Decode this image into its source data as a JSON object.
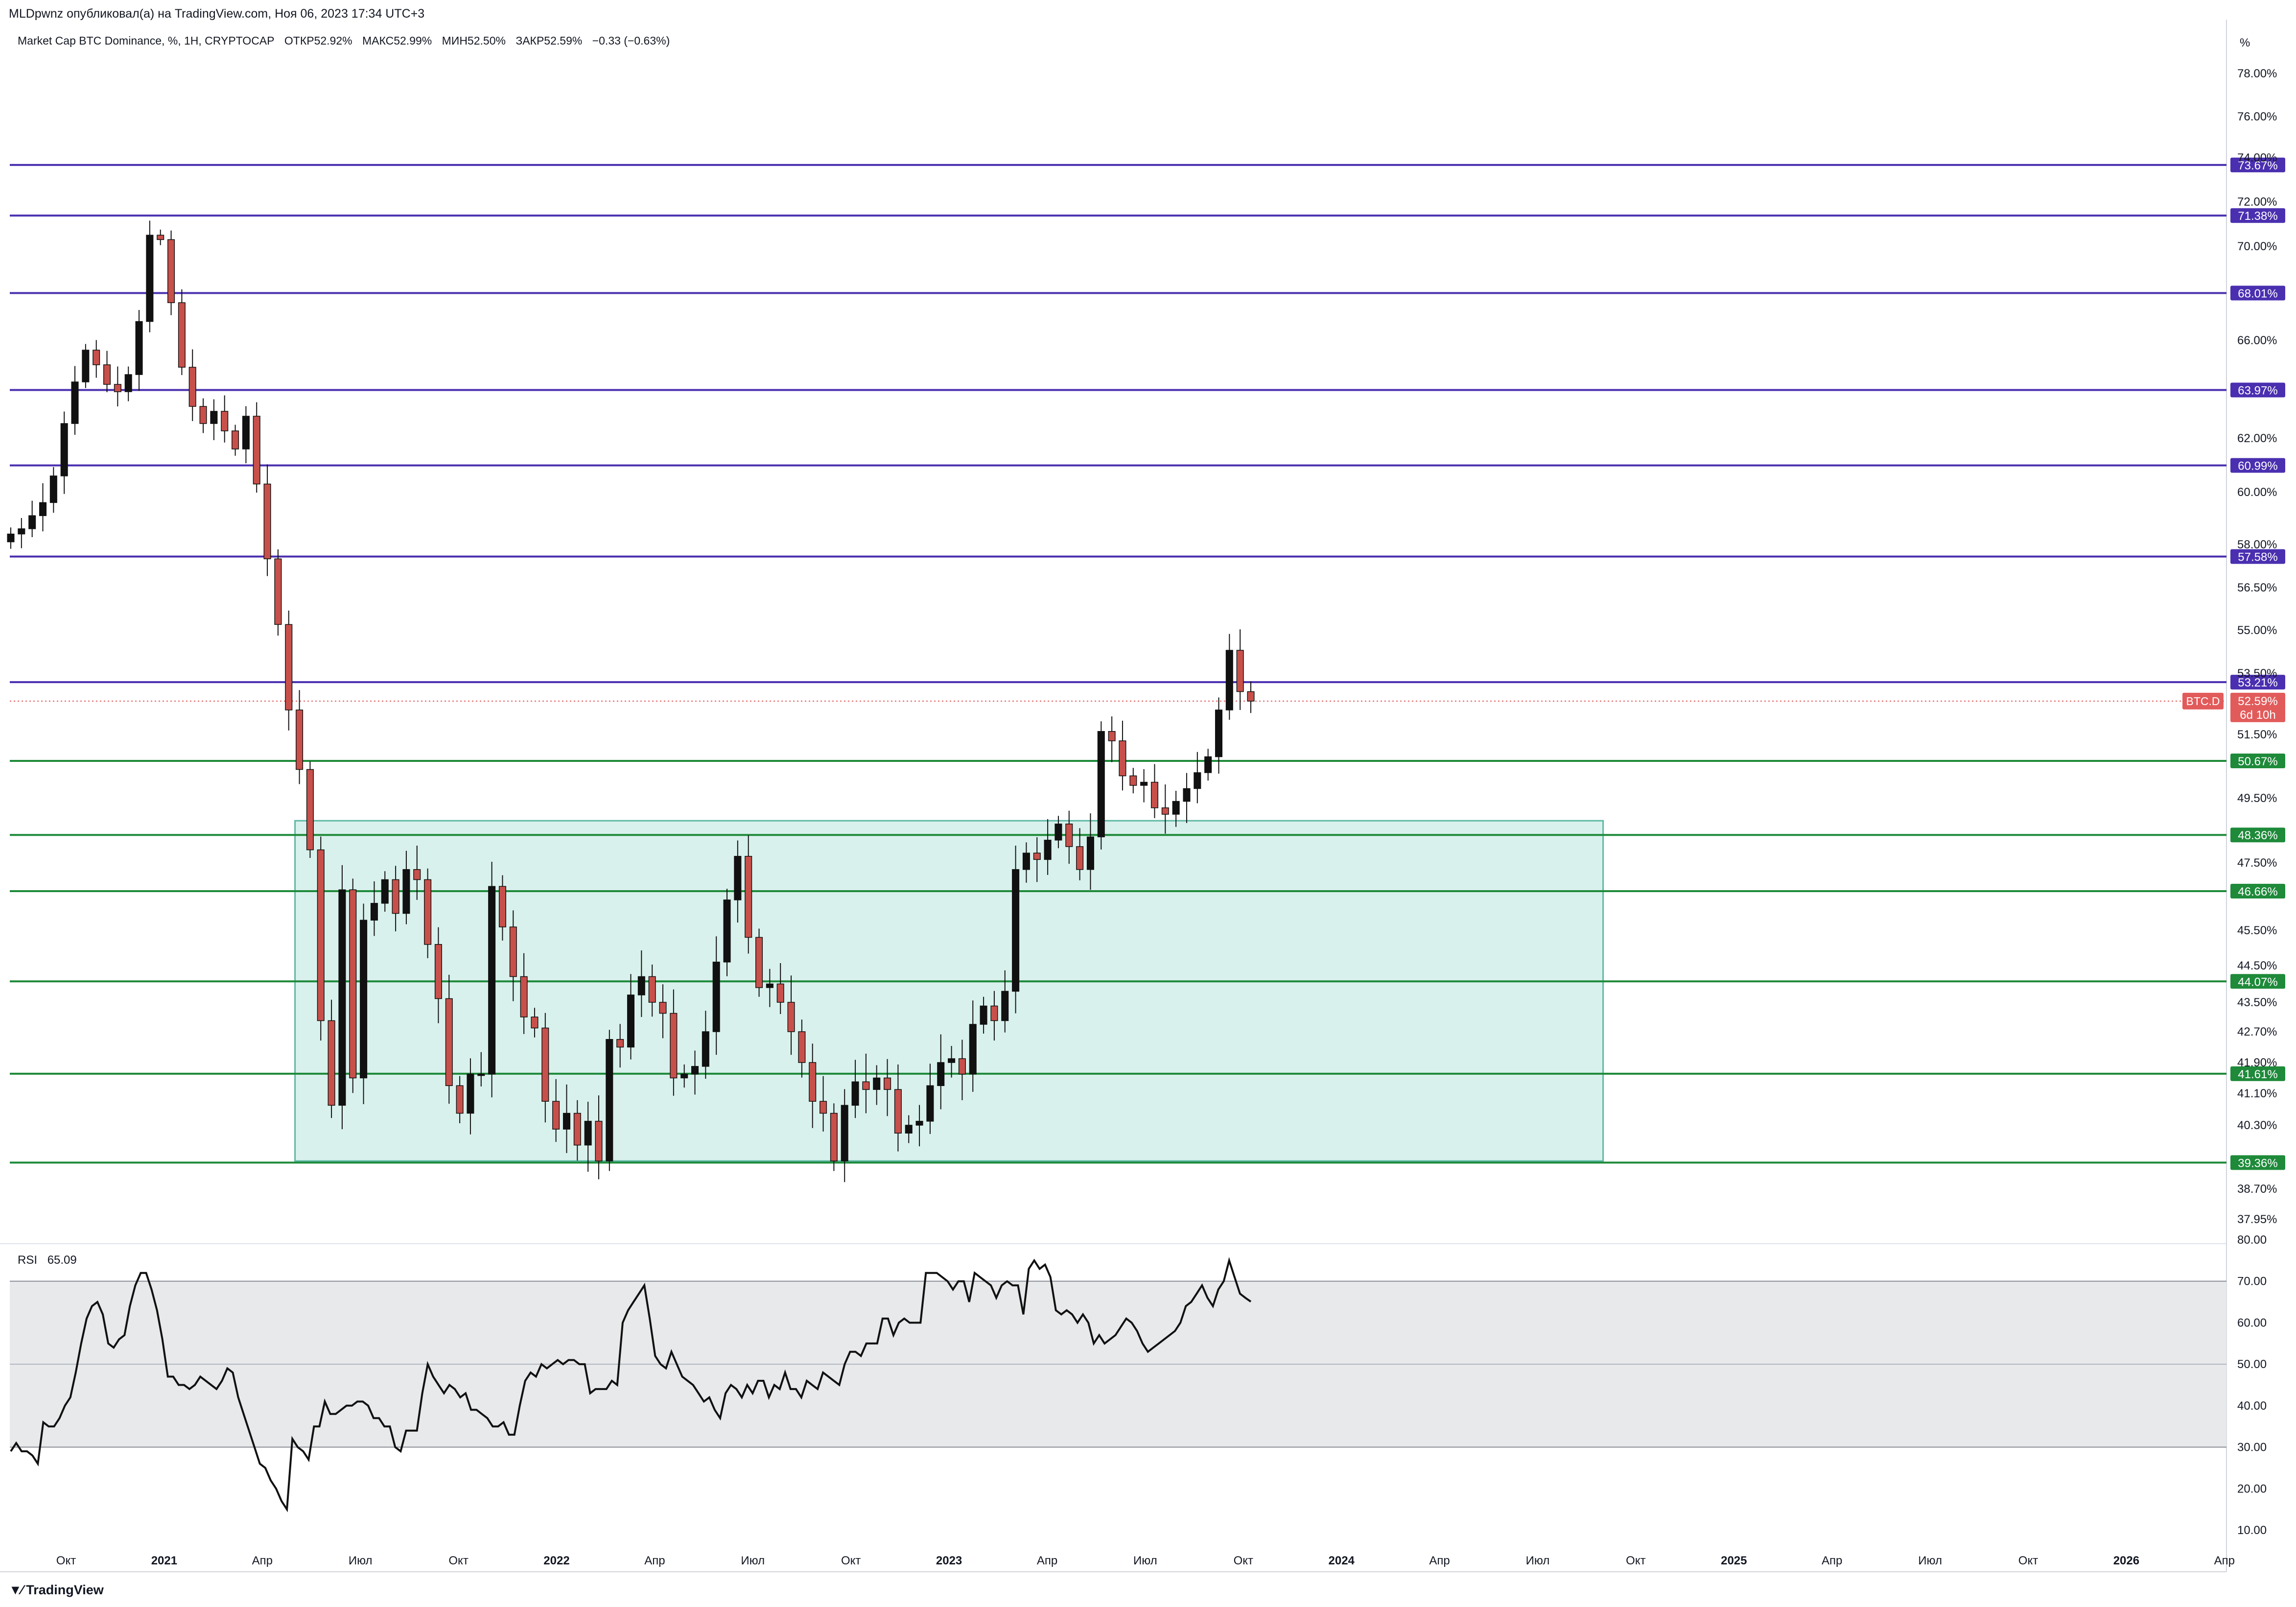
{
  "header": {
    "publisher_line": "MLDpwnz опубликовал(а) на TradingView.com, Ноя 06, 2023 17:34 UTC+3",
    "symbol_line": [
      "Market Cap BTC Dominance, %, 1H, CRYPTOCAP",
      "ОТКР52.92%",
      "МАКС52.99%",
      "МИН52.50%",
      "ЗАКР52.59%",
      "−0.33 (−0.63%)"
    ],
    "rsi_line": [
      "RSI",
      "65.09"
    ],
    "percent_label": "%",
    "logo_text": "TradingView",
    "logo_icon": "tradingview-logo-icon"
  },
  "colors": {
    "up_candle": "#111111",
    "down_candle": "#c8504b",
    "resistance_line": "#4a2fb0",
    "support_line": "#1e8a3a",
    "range_fill": "#d9f1ec",
    "range_border": "#5fb8a6",
    "rsi_band": "#e8e9eb",
    "current_price_tag": "#e25b5b"
  },
  "chart_data": [
    {
      "type": "candlestick",
      "title": "Market Cap BTC Dominance, %, 1H, CRYPTOCAP",
      "ylabel": "%",
      "ylim": [
        37.5,
        80.0
      ],
      "y_tick_labels": [
        "78.00%",
        "76.00%",
        "74.00%",
        "72.00%",
        "70.00%",
        "66.00%",
        "62.00%",
        "60.00%",
        "58.00%",
        "56.50%",
        "55.00%",
        "53.50%",
        "51.50%",
        "49.50%",
        "47.50%",
        "45.50%",
        "44.50%",
        "43.50%",
        "42.70%",
        "41.90%",
        "41.10%",
        "40.30%",
        "38.70%",
        "37.95%"
      ],
      "x_tick_labels": [
        "Окт",
        "2021",
        "Апр",
        "Июл",
        "Окт",
        "2022",
        "Апр",
        "Июл",
        "Окт",
        "2023",
        "Апр",
        "Июл",
        "Окт",
        "2024",
        "Апр",
        "Июл",
        "Окт",
        "2025",
        "Апр",
        "Июл",
        "Окт",
        "2026",
        "Апр"
      ],
      "x_tick_bold": [
        "2021",
        "2022",
        "2023",
        "2024",
        "2025",
        "2026"
      ],
      "resistance_levels": [
        "73.67%",
        "71.38%",
        "68.01%",
        "63.97%",
        "60.99%",
        "57.58%",
        "53.21%"
      ],
      "support_levels": [
        "50.67%",
        "48.36%",
        "46.66%",
        "44.07%",
        "41.61%",
        "39.36%"
      ],
      "range_box": {
        "top": 48.8,
        "bottom": 39.4,
        "start": "2021-05",
        "end": "2024-09"
      },
      "current_price": {
        "symbol": "BTC.D",
        "value": "52.59%",
        "countdown": "6d 10h"
      },
      "close_path": [
        58.4,
        58.6,
        59.1,
        59.6,
        60.6,
        62.6,
        64.3,
        65.6,
        65.0,
        64.2,
        63.9,
        64.6,
        66.8,
        70.5,
        70.3,
        67.6,
        64.9,
        63.3,
        62.6,
        63.1,
        62.3,
        61.6,
        62.9,
        60.3,
        57.5,
        55.2,
        52.3,
        50.4,
        47.9,
        43.0,
        40.8,
        46.7,
        41.5,
        45.8,
        46.3,
        47.0,
        46.0,
        47.3,
        47.0,
        45.1,
        43.6,
        41.3,
        40.6,
        41.6,
        41.6,
        46.8,
        45.6,
        44.2,
        43.1,
        42.8,
        40.9,
        40.2,
        40.6,
        39.8,
        40.4,
        39.4,
        42.5,
        42.3,
        43.7,
        44.2,
        43.5,
        43.2,
        41.5,
        41.6,
        41.8,
        42.7,
        44.6,
        46.4,
        47.7,
        45.3,
        43.9,
        44.0,
        43.5,
        42.7,
        41.9,
        40.9,
        40.6,
        39.4,
        40.8,
        41.4,
        41.2,
        41.5,
        41.2,
        40.1,
        40.3,
        40.4,
        41.3,
        41.9,
        42.0,
        41.6,
        42.9,
        43.4,
        43.0,
        43.8,
        47.3,
        47.8,
        47.6,
        48.2,
        48.7,
        48.0,
        47.3,
        48.3,
        51.6,
        51.3,
        50.2,
        49.9,
        50.0,
        49.2,
        49.0,
        49.4,
        49.8,
        50.3,
        50.8,
        52.3,
        54.3,
        52.9,
        52.59
      ]
    },
    {
      "type": "line",
      "title": "RSI",
      "ylim": [
        10,
        82
      ],
      "y_tick_labels": [
        "80.00",
        "70.00",
        "60.00",
        "50.00",
        "40.00",
        "30.00",
        "20.00",
        "10.00"
      ],
      "band": [
        30,
        70
      ],
      "midline": 50,
      "values": [
        29,
        31,
        29,
        29,
        28,
        26,
        36,
        35,
        35,
        37,
        40,
        42,
        48,
        55,
        61,
        64,
        65,
        62,
        55,
        54,
        56,
        57,
        64,
        69,
        72,
        72,
        68,
        63,
        56,
        47,
        47,
        45,
        45,
        44,
        45,
        47,
        46,
        45,
        44,
        46,
        49,
        48,
        42,
        38,
        34,
        30,
        26,
        25,
        22,
        20,
        17,
        15,
        32,
        30,
        29,
        27,
        35,
        35,
        41,
        38,
        38,
        39,
        40,
        40,
        41,
        41,
        40,
        37,
        37,
        35,
        35,
        30,
        29,
        34,
        34,
        34,
        43,
        50,
        47,
        45,
        43,
        45,
        44,
        42,
        43,
        39,
        39,
        38,
        37,
        35,
        35,
        36,
        33,
        33,
        40,
        46,
        48,
        47,
        50,
        49,
        50,
        51,
        50,
        51,
        51,
        50,
        50,
        43,
        44,
        44,
        44,
        46,
        45,
        60,
        63,
        65,
        67,
        69,
        61,
        52,
        50,
        49,
        53,
        50,
        47,
        46,
        45,
        43,
        41,
        42,
        39,
        37,
        43,
        45,
        44,
        42,
        45,
        43,
        46,
        46,
        42,
        45,
        44,
        48,
        44,
        44,
        42,
        46,
        45,
        44,
        48,
        47,
        46,
        45,
        50,
        53,
        53,
        52,
        55,
        55,
        55,
        61,
        61,
        57,
        60,
        61,
        60,
        60,
        60,
        72,
        72,
        72,
        71,
        70,
        68,
        70,
        70,
        65,
        72,
        71,
        70,
        69,
        66,
        69,
        70,
        69,
        69,
        62,
        73,
        75,
        73,
        74,
        71,
        63,
        62,
        63,
        62,
        60,
        62,
        60,
        55,
        57,
        55,
        56,
        57,
        59,
        61,
        60,
        58,
        55,
        53,
        54,
        55,
        56,
        57,
        58,
        60,
        64,
        65,
        67,
        69,
        66,
        64,
        68,
        70,
        75,
        71,
        67,
        66,
        65.09
      ],
      "current_value": "65.09"
    }
  ]
}
